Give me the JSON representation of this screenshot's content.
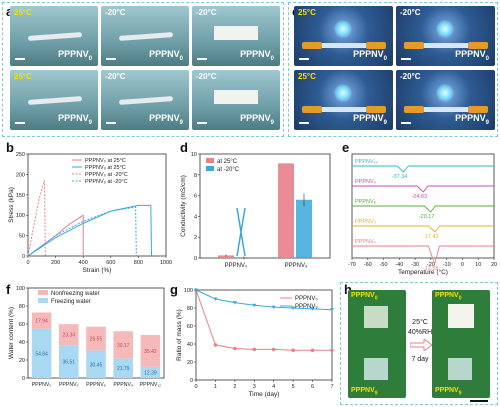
{
  "panels": {
    "a": "a",
    "b": "b",
    "c": "c",
    "d": "d",
    "e": "e",
    "f": "f",
    "g": "g",
    "h": "h"
  },
  "colors": {
    "ppnv0": "#e8808a",
    "ppnv9": "#3aa9d8",
    "warm_text": "#f2e200",
    "frame": "#7fc8d6"
  },
  "photos_a": [
    {
      "temp": "25°C",
      "sample": "PPPNV",
      "sub": "0"
    },
    {
      "temp": "-20°C",
      "sample": "PPPNV",
      "sub": "0"
    },
    {
      "temp": "-20°C",
      "sample": "PPPNV",
      "sub": "0"
    },
    {
      "temp": "25°C",
      "sample": "PPPNV",
      "sub": "9"
    },
    {
      "temp": "-20°C",
      "sample": "PPPNV",
      "sub": "9"
    },
    {
      "temp": "-20°C",
      "sample": "PPPNV",
      "sub": "9"
    }
  ],
  "photos_c": [
    {
      "temp": "25°C",
      "sample": "PPPNV",
      "sub": "0"
    },
    {
      "temp": "-20°C",
      "sample": "PPPNV",
      "sub": "0"
    },
    {
      "temp": "25°C",
      "sample": "PPPNV",
      "sub": "9"
    },
    {
      "temp": "-20°C",
      "sample": "PPPNV",
      "sub": "9"
    }
  ],
  "photos_h": {
    "left_top": "PPPNV",
    "left_top_sub": "0",
    "left_bottom": "PPPNV",
    "left_bottom_sub": "9",
    "right_top": "PPPNV",
    "right_top_sub": "0",
    "right_bottom": "PPPNV",
    "right_bottom_sub": "9",
    "cond1": "25°C",
    "cond2": "40%RH",
    "cond3": "7 day"
  },
  "chart_data": [
    {
      "id": "b",
      "type": "line",
      "xlabel": "Strain (%)",
      "ylabel": "Stress (kPa)",
      "xticks": [
        "0",
        "200",
        "400",
        "600",
        "800",
        "1000"
      ],
      "yticks": [
        "0",
        "50",
        "100",
        "150",
        "200",
        "250"
      ],
      "xlim": [
        0,
        1000
      ],
      "ylim": [
        0,
        250
      ],
      "series": [
        {
          "name": "PPPNV₀ at 25°C",
          "style": "solid",
          "color": "#e8808a",
          "points": [
            [
              0,
              0
            ],
            [
              100,
              25
            ],
            [
              200,
              50
            ],
            [
              300,
              78
            ],
            [
              400,
              100
            ],
            [
              400,
              0
            ]
          ]
        },
        {
          "name": "PPPNV₉ at 25°C",
          "style": "solid",
          "color": "#3aa9d8",
          "points": [
            [
              0,
              0
            ],
            [
              200,
              45
            ],
            [
              400,
              80
            ],
            [
              600,
              110
            ],
            [
              800,
              124
            ],
            [
              890,
              124
            ],
            [
              895,
              0
            ]
          ]
        },
        {
          "name": "PPPNV₀ at -20°C",
          "style": "dashed",
          "color": "#e8808a",
          "points": [
            [
              0,
              0
            ],
            [
              40,
              70
            ],
            [
              80,
              140
            ],
            [
              120,
              185
            ],
            [
              125,
              0
            ]
          ]
        },
        {
          "name": "PPPNV₉ at -20°C",
          "style": "dashed",
          "color": "#3aa9d8",
          "points": [
            [
              0,
              0
            ],
            [
              200,
              50
            ],
            [
              400,
              85
            ],
            [
              600,
              110
            ],
            [
              780,
              120
            ],
            [
              785,
              0
            ]
          ]
        }
      ]
    },
    {
      "id": "d",
      "type": "bar",
      "ylabel": "Conductivity (mS/cm)",
      "categories": [
        "PPPNV₀",
        "PPPNV₉"
      ],
      "yticks": [
        "0",
        "2",
        "4",
        "6",
        "8",
        "10"
      ],
      "ylim": [
        0,
        10
      ],
      "series": [
        {
          "name": "at 25°C",
          "color": "#e8808a",
          "values": [
            0.25,
            9.1
          ]
        },
        {
          "name": "at -20°C",
          "color": "#3aa9d8",
          "values": [
            0,
            5.6
          ]
        }
      ],
      "errors": [
        0.1,
        0.15,
        0,
        0.6
      ]
    },
    {
      "id": "e",
      "type": "line",
      "xlabel": "Temperature (°C)",
      "ylabel": "Heat Flow",
      "xticks": [
        "-70",
        "-60",
        "-50",
        "-40",
        "-30",
        "-20",
        "-10",
        "0",
        "10",
        "20"
      ],
      "xlim": [
        -70,
        20
      ],
      "series": [
        {
          "name": "PPPNV₁₂",
          "color": "#3ab6c4",
          "peak": "-37.34"
        },
        {
          "name": "PPPNV₉",
          "color": "#c44fb5",
          "peak": "-24.83"
        },
        {
          "name": "PPPNV₆",
          "color": "#5aa83c",
          "peak": "-20.17"
        },
        {
          "name": "PPPNV₃",
          "color": "#e0b52a",
          "peak": "-17.42"
        },
        {
          "name": "PPPNV₀",
          "color": "#e8808a",
          "peak": "-17.58"
        }
      ]
    },
    {
      "id": "f",
      "type": "bar",
      "ylabel": "Water content (%)",
      "categories": [
        "PPPNV₀",
        "PPPNV₃",
        "PPPNV₆",
        "PPPNV₉",
        "PPPNV₁₂"
      ],
      "yticks": [
        "0",
        "20",
        "40",
        "60",
        "80",
        "100"
      ],
      "ylim": [
        0,
        100
      ],
      "series": [
        {
          "name": "Freezing water",
          "color": "#a9d9f2",
          "values": [
            54.84,
            36.51,
            30.45,
            21.79,
            12.39
          ]
        },
        {
          "name": "Nonfreezing water",
          "color": "#f6b9ba",
          "values": [
            17.94,
            23.34,
            26.55,
            30.17,
            35.42
          ]
        }
      ]
    },
    {
      "id": "g",
      "type": "line",
      "xlabel": "Time (day)",
      "ylabel": "Ratio of mass (%)",
      "xticks": [
        "0",
        "1",
        "2",
        "3",
        "4",
        "5",
        "6",
        "7"
      ],
      "yticks": [
        "0",
        "20",
        "40",
        "60",
        "80",
        "100"
      ],
      "xlim": [
        0,
        7
      ],
      "ylim": [
        0,
        100
      ],
      "series": [
        {
          "name": "PPPNV₀",
          "color": "#e8808a",
          "x": [
            0,
            1,
            2,
            3,
            4,
            5,
            6,
            7
          ],
          "y": [
            100,
            39,
            35,
            34,
            34,
            33,
            33,
            33
          ]
        },
        {
          "name": "PPPNV₉",
          "color": "#3aa9d8",
          "x": [
            0,
            1,
            2,
            3,
            4,
            5,
            6,
            7
          ],
          "y": [
            100,
            90,
            86,
            83,
            81,
            80,
            79,
            78
          ]
        }
      ]
    }
  ]
}
